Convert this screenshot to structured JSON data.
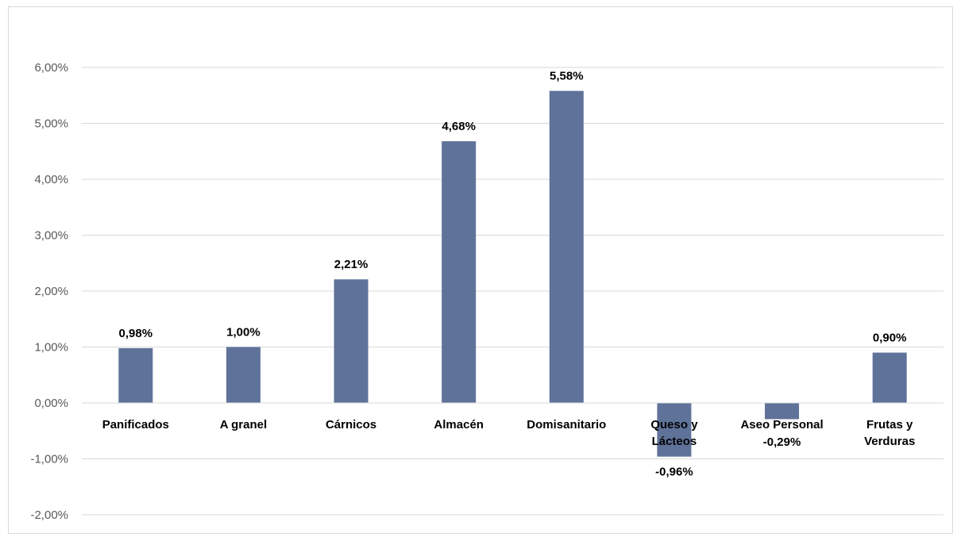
{
  "chart_data": {
    "type": "bar",
    "title": "",
    "xlabel": "",
    "ylabel": "",
    "categories": [
      [
        "Panificados"
      ],
      [
        "A granel"
      ],
      [
        "Cárnicos"
      ],
      [
        "Almacén"
      ],
      [
        "Domisanitario"
      ],
      [
        "Queso y",
        "Lácteos"
      ],
      [
        "Aseo Personal"
      ],
      [
        "Frutas y",
        "Verduras"
      ]
    ],
    "values": [
      0.98,
      1.0,
      2.21,
      4.68,
      5.58,
      -0.96,
      -0.29,
      0.9
    ],
    "data_labels": [
      "0,98%",
      "1,00%",
      "2,21%",
      "4,68%",
      "5,58%",
      "-0,96%",
      "-0,29%",
      "0,90%"
    ],
    "y_ticks": [
      6,
      5,
      4,
      3,
      2,
      1,
      0,
      -1,
      -2
    ],
    "y_tick_labels": [
      "6,00%",
      "5,00%",
      "4,00%",
      "3,00%",
      "2,00%",
      "1,00%",
      "0,00%",
      "-1,00%",
      "-2,00%"
    ],
    "ylim": [
      -2,
      6
    ],
    "grid": true,
    "legend": "none",
    "bar_color": "#5f7299",
    "grid_color": "#d9d9d9"
  }
}
